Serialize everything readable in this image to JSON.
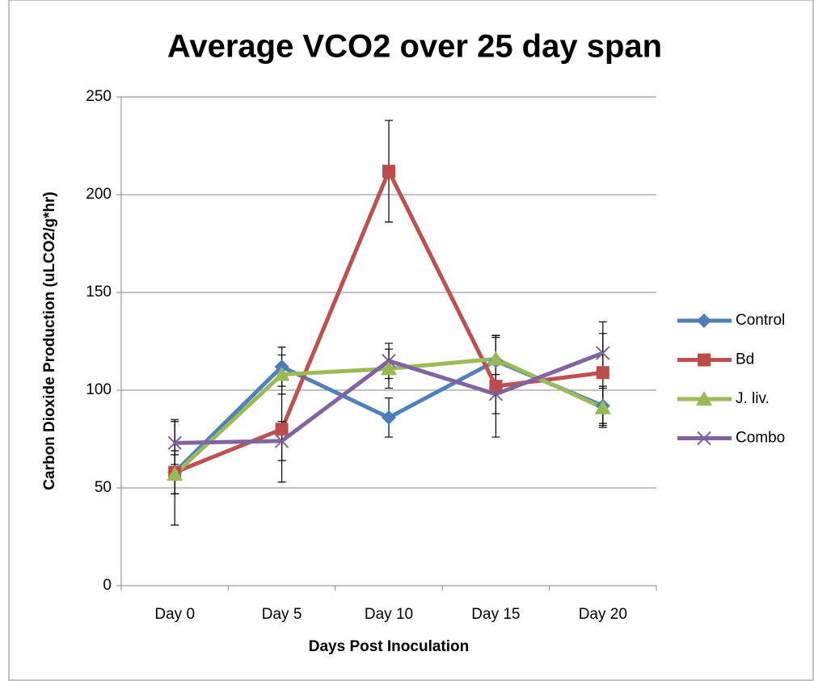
{
  "chart_data": {
    "type": "line",
    "title": "Average VCO2 over 25 day span",
    "x_label": "Days Post Inoculation",
    "y_label": "Carbon Dioxide Production (uLCO2/g*hr)",
    "categories": [
      "Day 0",
      "Day 5",
      "Day 10",
      "Day 15",
      "Day 20"
    ],
    "series": [
      {
        "name": "Control",
        "color": "#4a7ebb",
        "marker": "diamond",
        "values": [
          58,
          112,
          86,
          115,
          92
        ],
        "errors": [
          11,
          10,
          10,
          12,
          10
        ]
      },
      {
        "name": "Bd",
        "color": "#be4b48",
        "marker": "square",
        "values": [
          58,
          80,
          212,
          102,
          109
        ],
        "errors": [
          27,
          27,
          26,
          26,
          26
        ]
      },
      {
        "name": "J. liv.",
        "color": "#98b954",
        "marker": "triangle",
        "values": [
          57,
          108,
          111,
          116,
          91
        ],
        "errors": [
          10,
          10,
          10,
          12,
          10
        ]
      },
      {
        "name": "Combo",
        "color": "#7d60a0",
        "marker": "x",
        "values": [
          73,
          74,
          115,
          98,
          119
        ],
        "errors": [
          11,
          10,
          9,
          10,
          10
        ]
      }
    ],
    "ylim": [
      0,
      250
    ],
    "yticks": [
      0,
      50,
      100,
      150,
      200,
      250
    ],
    "grid": true,
    "legend": "right"
  }
}
